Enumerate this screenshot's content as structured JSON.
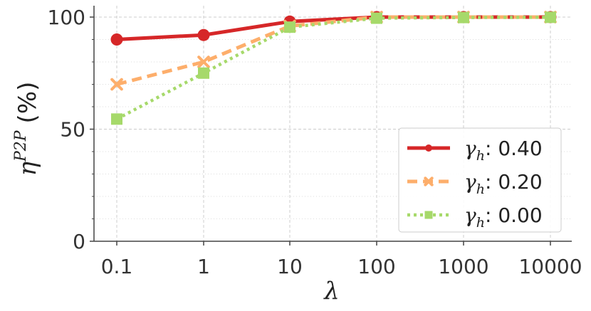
{
  "chart_data": {
    "type": "line",
    "categories": [
      "0.1",
      "1",
      "10",
      "100",
      "1000",
      "10000"
    ],
    "xlabel": "λ",
    "ylabel_symbol": "η",
    "ylabel_superscript": "P2P",
    "ylabel_unit": "(%)",
    "ylim": [
      0,
      100
    ],
    "yticks": [
      0,
      50,
      100
    ],
    "grid": true,
    "legend_position": "lower-right",
    "legend_symbol": "γ",
    "legend_subscript": "h",
    "series": [
      {
        "name": "0.40",
        "values": [
          90,
          92,
          98,
          100,
          100,
          100
        ],
        "color": "#d62728",
        "style": "solid",
        "marker": "circle"
      },
      {
        "name": "0.20",
        "values": [
          70,
          80,
          96,
          100,
          100,
          100
        ],
        "color": "#fdae6b",
        "style": "dashed",
        "marker": "x"
      },
      {
        "name": "0.00",
        "values": [
          54.5,
          75,
          95.5,
          99.5,
          99.8,
          99.9
        ],
        "color": "#a6d96a",
        "style": "dotted",
        "marker": "square"
      }
    ]
  }
}
